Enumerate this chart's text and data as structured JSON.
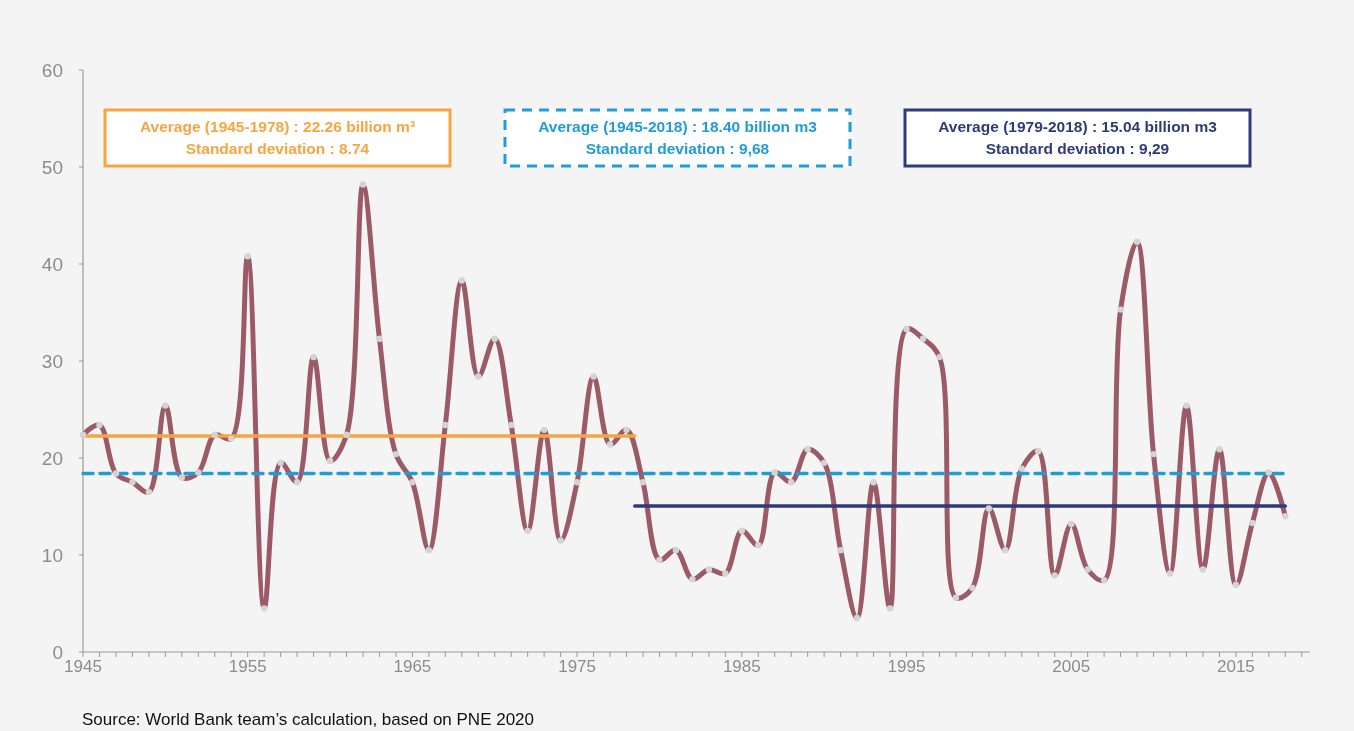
{
  "chart_data": {
    "type": "line",
    "x": [
      1945,
      1946,
      1947,
      1948,
      1949,
      1950,
      1951,
      1952,
      1953,
      1954,
      1955,
      1956,
      1957,
      1958,
      1959,
      1960,
      1961,
      1962,
      1963,
      1964,
      1965,
      1966,
      1967,
      1968,
      1969,
      1970,
      1971,
      1972,
      1973,
      1974,
      1975,
      1976,
      1977,
      1978,
      1979,
      1980,
      1981,
      1982,
      1983,
      1984,
      1985,
      1986,
      1987,
      1988,
      1989,
      1990,
      1991,
      1992,
      1993,
      1994,
      1995,
      1996,
      1997,
      1998,
      1999,
      2000,
      2001,
      2002,
      2003,
      2004,
      2005,
      2006,
      2007,
      2008,
      2009,
      2010,
      2011,
      2012,
      2013,
      2014,
      2015,
      2016,
      2017,
      2018
    ],
    "series": [
      {
        "color": "#9b5a66",
        "values": [
          22.4,
          23.4,
          18.4,
          17.5,
          16.5,
          25.4,
          18.0,
          18.5,
          22.4,
          22.0,
          40.8,
          4.5,
          19.5,
          17.5,
          30.4,
          19.7,
          22.4,
          48.2,
          32.3,
          20.4,
          17.5,
          10.5,
          23.4,
          38.3,
          28.4,
          32.3,
          23.4,
          12.5,
          22.9,
          11.5,
          17.5,
          28.4,
          21.4,
          22.9,
          17.5,
          9.5,
          10.5,
          7.5,
          8.5,
          8.1,
          12.5,
          11.0,
          18.5,
          17.5,
          20.9,
          19.5,
          10.5,
          3.5,
          17.5,
          4.5,
          33.3,
          32.3,
          30.4,
          5.6,
          6.6,
          14.8,
          10.5,
          18.9,
          20.7,
          7.9,
          13.2,
          8.5,
          7.4,
          35.3,
          42.3,
          20.4,
          8.1,
          25.4,
          8.5,
          20.9,
          6.9,
          13.3,
          18.5,
          14.0
        ]
      },
      {
        "name": "Average (1945-1978) : 22.26 billion m³\nStandard deviation : 8.74",
        "color": "#f7a541",
        "line_style": "solid",
        "x": [
          1945,
          1978.5
        ],
        "values": [
          22.26,
          22.26
        ]
      },
      {
        "name": "Average (1945-2018) : 18.40 billion m3\nStandard deviation : 9,68",
        "color": "#229bd9",
        "line_style": "dashed",
        "x": [
          1945,
          2018
        ],
        "values": [
          18.4,
          18.4
        ]
      },
      {
        "name": "Average (1979-2018) : 15.04 billion m3\nStandard deviation : 9,29",
        "color": "#2f3b78",
        "line_style": "solid",
        "x": [
          1978.5,
          2018
        ],
        "values": [
          15.04,
          15.04
        ]
      },
      {
        "type": "scatter",
        "color": "#d4d4d4",
        "values": [
          22.4,
          23.4,
          18.4,
          17.5,
          16.5,
          25.4,
          18.0,
          18.5,
          22.4,
          22.0,
          40.8,
          4.5,
          19.5,
          17.5,
          30.4,
          19.7,
          22.4,
          48.2,
          32.3,
          20.4,
          17.5,
          10.5,
          23.4,
          38.3,
          28.4,
          32.3,
          23.4,
          12.5,
          22.9,
          11.5,
          17.5,
          28.4,
          21.4,
          22.9,
          17.5,
          9.5,
          10.5,
          7.5,
          8.5,
          8.1,
          12.5,
          11.0,
          18.5,
          17.5,
          20.9,
          19.5,
          10.5,
          3.5,
          17.5,
          4.5,
          33.3,
          32.3,
          30.4,
          5.6,
          6.6,
          14.8,
          10.5,
          18.9,
          20.7,
          7.9,
          13.2,
          8.5,
          7.4,
          35.3,
          42.3,
          20.4,
          8.1,
          25.4,
          8.5,
          20.9,
          6.9,
          13.3,
          18.5,
          14.0
        ]
      }
    ],
    "xlim": [
      1945,
      2019.5
    ],
    "xticks": [
      1945,
      {
        "value": 1946,
        "label": null
      },
      {
        "value": 1947,
        "label": null
      },
      {
        "value": 1948,
        "label": null
      },
      {
        "value": 1949,
        "label": null
      },
      {
        "value": 1950,
        "label": null
      },
      {
        "value": 1951,
        "label": null
      },
      {
        "value": 1952,
        "label": null
      },
      {
        "value": 1953,
        "label": null
      },
      {
        "value": 1954,
        "label": null
      },
      1955,
      {
        "value": 1956,
        "label": null
      },
      {
        "value": 1957,
        "label": null
      },
      {
        "value": 1958,
        "label": null
      },
      {
        "value": 1959,
        "label": null
      },
      {
        "value": 1960,
        "label": null
      },
      {
        "value": 1961,
        "label": null
      },
      {
        "value": 1962,
        "label": null
      },
      {
        "value": 1963,
        "label": null
      },
      {
        "value": 1964,
        "label": null
      },
      1965,
      {
        "value": 1966,
        "label": null
      },
      {
        "value": 1967,
        "label": null
      },
      {
        "value": 1968,
        "label": null
      },
      {
        "value": 1969,
        "label": null
      },
      {
        "value": 1970,
        "label": null
      },
      {
        "value": 1971,
        "label": null
      },
      {
        "value": 1972,
        "label": null
      },
      {
        "value": 1973,
        "label": null
      },
      {
        "value": 1974,
        "label": null
      },
      1975,
      {
        "value": 1976,
        "label": null
      },
      {
        "value": 1977,
        "label": null
      },
      {
        "value": 1978,
        "label": null
      },
      {
        "value": 1979,
        "label": null
      },
      {
        "value": 1980,
        "label": null
      },
      {
        "value": 1981,
        "label": null
      },
      {
        "value": 1982,
        "label": null
      },
      {
        "value": 1983,
        "label": null
      },
      {
        "value": 1984,
        "label": null
      },
      1985,
      {
        "value": 1986,
        "label": null
      },
      {
        "value": 1987,
        "label": null
      },
      {
        "value": 1988,
        "label": null
      },
      {
        "value": 1989,
        "label": null
      },
      {
        "value": 1990,
        "label": null
      },
      {
        "value": 1991,
        "label": null
      },
      {
        "value": 1992,
        "label": null
      },
      {
        "value": 1993,
        "label": null
      },
      {
        "value": 1994,
        "label": null
      },
      1995,
      {
        "value": 1996,
        "label": null
      },
      {
        "value": 1997,
        "label": null
      },
      {
        "value": 1998,
        "label": null
      },
      {
        "value": 1999,
        "label": null
      },
      {
        "value": 2000,
        "label": null
      },
      {
        "value": 2001,
        "label": null
      },
      {
        "value": 2002,
        "label": null
      },
      {
        "value": 2003,
        "label": null
      },
      {
        "value": 2004,
        "label": null
      },
      2005,
      {
        "value": 2006,
        "label": null
      },
      {
        "value": 2007,
        "label": null
      },
      {
        "value": 2008,
        "label": null
      },
      {
        "value": 2009,
        "label": null
      },
      {
        "value": 2010,
        "label": null
      },
      {
        "value": 2011,
        "label": null
      },
      {
        "value": 2012,
        "label": null
      },
      {
        "value": 2013,
        "label": null
      },
      {
        "value": 2014,
        "label": null
      },
      2015,
      {
        "value": 2016,
        "label": null
      },
      {
        "value": 2017,
        "label": null
      },
      {
        "value": 2018,
        "label": null
      },
      {
        "value": 2019,
        "label": null
      }
    ],
    "ylim": [
      0,
      60
    ],
    "yticks": [
      0,
      10,
      20,
      30,
      40,
      50,
      60
    ],
    "grid": false,
    "legend": "top",
    "annotations": [
      "Source: World Bank team’s calculation, based on PNE 2020"
    ]
  }
}
